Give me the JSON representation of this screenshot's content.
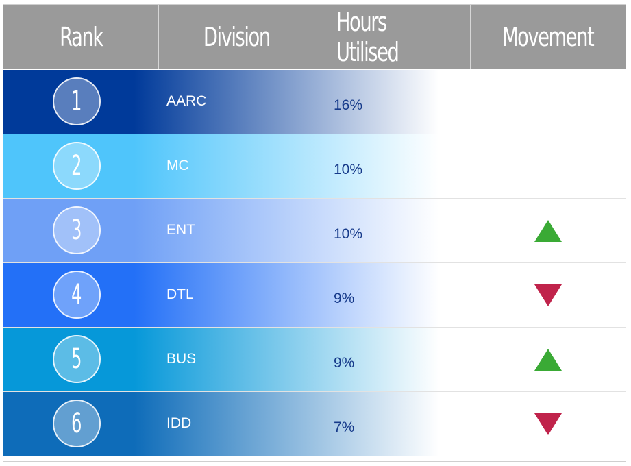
{
  "header": {
    "rank_label": "Rank",
    "division_label": "Division",
    "hours_label": "Hours Utilised",
    "movement_label": "Movement"
  },
  "rows": [
    {
      "rank": "1",
      "division": "AARC",
      "hours": "16%",
      "movement": "none",
      "color": "#003a9a"
    },
    {
      "rank": "2",
      "division": "MC",
      "hours": "10%",
      "movement": "none",
      "color": "#4fc5fb"
    },
    {
      "rank": "3",
      "division": "ENT",
      "hours": "10%",
      "movement": "up",
      "color": "#6fa0f6"
    },
    {
      "rank": "4",
      "division": "DTL",
      "hours": "9%",
      "movement": "down",
      "color": "#2370f7"
    },
    {
      "rank": "5",
      "division": "BUS",
      "hours": "9%",
      "movement": "up",
      "color": "#0698d9"
    },
    {
      "rank": "6",
      "division": "IDD",
      "hours": "7%",
      "movement": "down",
      "color": "#0e6cb9"
    }
  ],
  "colors": {
    "header_bg": "#9a9a9a",
    "up_arrow": "#3aaa35",
    "down_arrow": "#c0234b",
    "hours_text": "#163a8a"
  },
  "icons": {
    "up": "up-arrow-icon",
    "down": "down-arrow-icon"
  }
}
